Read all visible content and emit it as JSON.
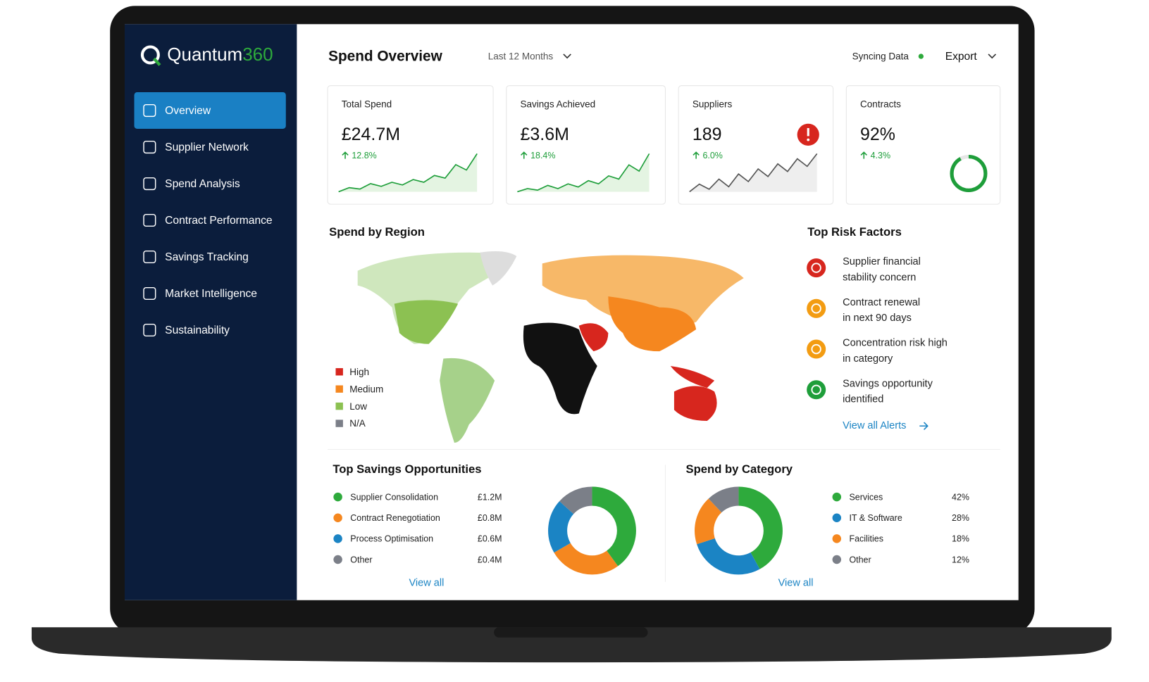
{
  "brand": {
    "name": "Quantum",
    "suffix": "360"
  },
  "nav": [
    "Overview",
    "Supplier Network",
    "Spend Analysis",
    "Contract Performance",
    "Savings Tracking",
    "Market Intelligence",
    "Sustainability"
  ],
  "header": {
    "title": "Spend Overview",
    "period": "Last 12 Months",
    "status": "Syncing Data",
    "export": "Export"
  },
  "kpis": [
    {
      "label": "Total Spend",
      "value": "£24.7M",
      "change": "12.8%",
      "trend": [
        2,
        5,
        4,
        8,
        6,
        9,
        7,
        11,
        9,
        14,
        12,
        22,
        18,
        30
      ]
    },
    {
      "label": "Savings Achieved",
      "value": "£3.6M",
      "change": "18.4%",
      "trend": [
        3,
        5,
        4,
        7,
        5,
        8,
        6,
        10,
        8,
        13,
        11,
        20,
        16,
        27
      ]
    },
    {
      "label": "Suppliers",
      "value": "189",
      "change": "6.0%",
      "trend": [
        3,
        6,
        4,
        8,
        5,
        10,
        7,
        12,
        9,
        14,
        11,
        16,
        13,
        18
      ]
    },
    {
      "label": "Contracts",
      "value": 92,
      "value_label": "92%",
      "change": "4.3%"
    }
  ],
  "region": {
    "title": "Spend by Region",
    "legend": [
      {
        "name": "High",
        "color": "#d7261e"
      },
      {
        "name": "Medium",
        "color": "#f5871f"
      },
      {
        "name": "Low",
        "color": "#8cc152"
      },
      {
        "name": "N/A",
        "color": "#7b7f88"
      }
    ]
  },
  "risks": {
    "title": "Top Risk Factors",
    "items": [
      {
        "lines": [
          "Supplier financial",
          "stability concern"
        ],
        "color": "#d7261e"
      },
      {
        "lines": [
          "Contract renewal",
          "in next 90 days"
        ],
        "color": "#f39c12"
      },
      {
        "lines": [
          "Concentration risk high",
          "in category"
        ],
        "color": "#f39c12"
      },
      {
        "lines": [
          "Savings opportunity",
          "identified"
        ],
        "color": "#1e9e3a"
      }
    ],
    "link": "View all Alerts"
  },
  "savings": {
    "title": "Top Savings Opportunities",
    "link": "View all",
    "items": [
      {
        "name": "Supplier Consolidation",
        "value": 1.2,
        "value_label": "£1.2M",
        "color": "#2eaa3c"
      },
      {
        "name": "Contract Renegotiation",
        "value": 0.8,
        "value_label": "£0.8M",
        "color": "#f5871f"
      },
      {
        "name": "Process Optimisation",
        "value": 0.6,
        "value_label": "£0.6M",
        "color": "#1b84c4"
      },
      {
        "name": "Other",
        "value": 0.4,
        "value_label": "£0.4M",
        "color": "#7b7f88"
      }
    ]
  },
  "category": {
    "title": "Spend by Category",
    "link": "View all",
    "items": [
      {
        "name": "Services",
        "value": 42,
        "value_label": "42%",
        "color": "#2eaa3c"
      },
      {
        "name": "IT & Software",
        "value": 28,
        "value_label": "28%",
        "color": "#1b84c4"
      },
      {
        "name": "Facilities",
        "value": 18,
        "value_label": "18%",
        "color": "#f5871f"
      },
      {
        "name": "Other",
        "value": 12,
        "value_label": "12%",
        "color": "#7b7f88"
      }
    ]
  }
}
